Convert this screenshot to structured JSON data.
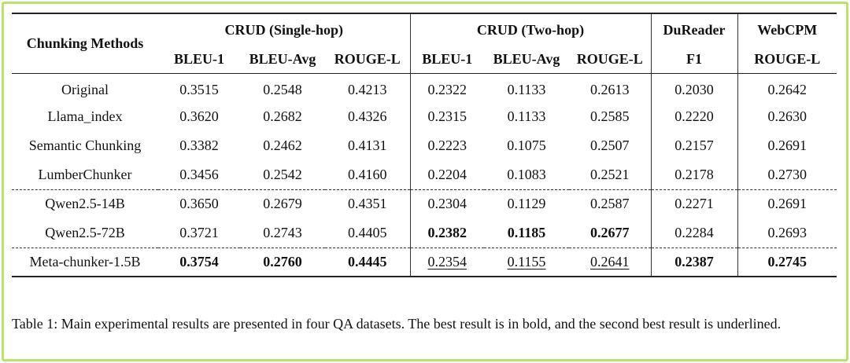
{
  "table": {
    "method_header": "Chunking Methods",
    "groups": [
      {
        "name": "CRUD (Single-hop)",
        "metrics": [
          "BLEU-1",
          "BLEU-Avg",
          "ROUGE-L"
        ]
      },
      {
        "name": "CRUD (Two-hop)",
        "metrics": [
          "BLEU-1",
          "BLEU-Avg",
          "ROUGE-L"
        ]
      },
      {
        "name": "DuReader",
        "metrics": [
          "F1"
        ]
      },
      {
        "name": "WebCPM",
        "metrics": [
          "ROUGE-L"
        ]
      }
    ],
    "rows": [
      {
        "method": "Original",
        "values": [
          "0.3515",
          "0.2548",
          "0.4213",
          "0.2322",
          "0.1133",
          "0.2613",
          "0.2030",
          "0.2642"
        ]
      },
      {
        "method": "Llama_index",
        "values": [
          "0.3620",
          "0.2682",
          "0.4326",
          "0.2315",
          "0.1133",
          "0.2585",
          "0.2220",
          "0.2630"
        ]
      },
      {
        "method": "Semantic Chunking",
        "values": [
          "0.3382",
          "0.2462",
          "0.4131",
          "0.2223",
          "0.1075",
          "0.2507",
          "0.2157",
          "0.2691"
        ]
      },
      {
        "method": "LumberChunker",
        "values": [
          "0.3456",
          "0.2542",
          "0.4160",
          "0.2204",
          "0.1083",
          "0.2521",
          "0.2178",
          "0.2730"
        ]
      },
      {
        "method": "Qwen2.5-14B",
        "values": [
          "0.3650",
          "0.2679",
          "0.4351",
          "0.2304",
          "0.1129",
          "0.2587",
          "0.2271",
          "0.2691"
        ]
      },
      {
        "method": "Qwen2.5-72B",
        "values": [
          "0.3721",
          "0.2743",
          "0.4405",
          "0.2382",
          "0.1185",
          "0.2677",
          "0.2284",
          "0.2693"
        ]
      },
      {
        "method": "Meta-chunker-1.5B",
        "values": [
          "0.3754",
          "0.2760",
          "0.4445",
          "0.2354",
          "0.1155",
          "0.2641",
          "0.2387",
          "0.2745"
        ]
      }
    ]
  },
  "caption": "Table 1: Main experimental results are presented in four QA datasets. The best result is in bold, and the second best result is underlined.",
  "colors": {
    "frame_border": "#b9e36a",
    "text": "#111111"
  }
}
